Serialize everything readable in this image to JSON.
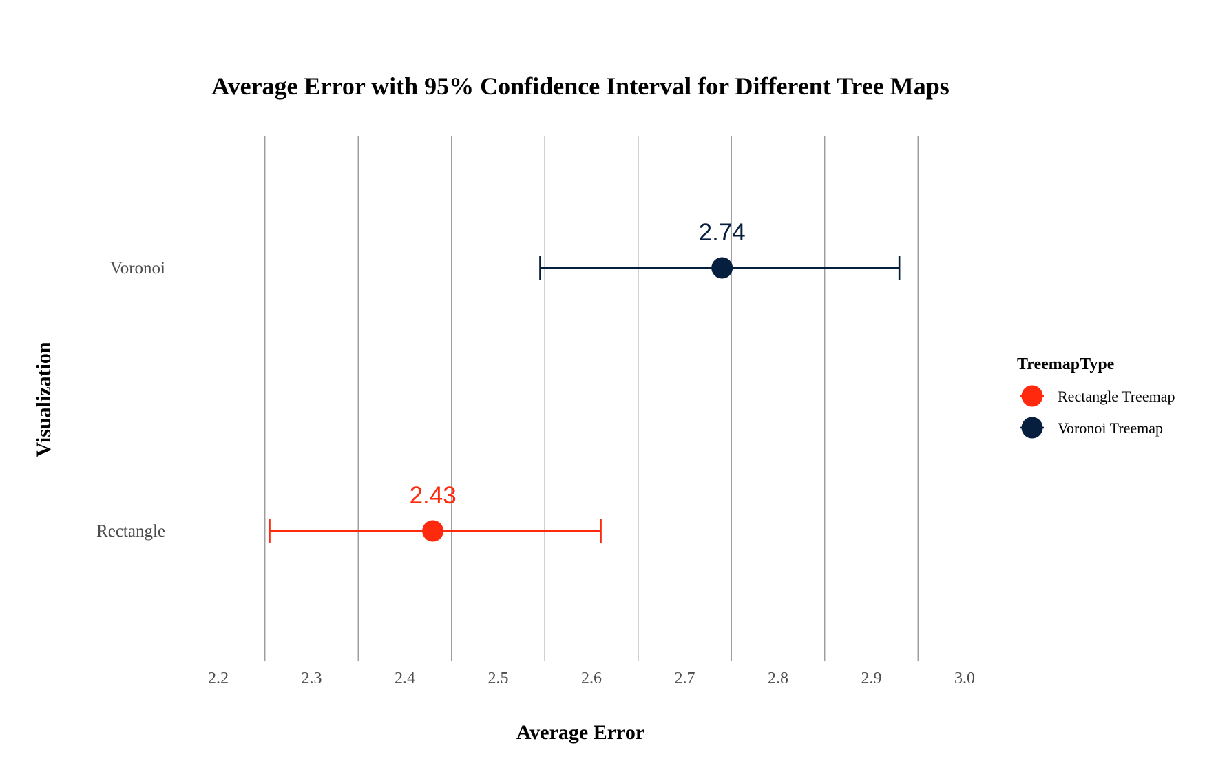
{
  "chart_data": {
    "type": "scatter",
    "title": "Average Error with 95% Confidence Interval for Different Tree Maps",
    "xlabel": "Average Error",
    "ylabel": "Visualization",
    "xlim": [
      2.2,
      3.0
    ],
    "xticks": [
      "2.2",
      "2.3",
      "2.4",
      "2.5",
      "2.6",
      "2.7",
      "2.8",
      "2.9",
      "3.0"
    ],
    "categories": [
      "Rectangle",
      "Voronoi"
    ],
    "legend": {
      "title": "TreemapType",
      "placement": "right",
      "entries": [
        "Rectangle Treemap",
        "Voronoi Treemap"
      ]
    },
    "grid": true,
    "series": [
      {
        "name": "Rectangle Treemap",
        "category": "Rectangle",
        "mean": 2.43,
        "ci_low": 2.255,
        "ci_high": 2.61,
        "label": "2.43",
        "color": "#ff2a0e"
      },
      {
        "name": "Voronoi Treemap",
        "category": "Voronoi",
        "mean": 2.74,
        "ci_low": 2.545,
        "ci_high": 2.93,
        "label": "2.74",
        "color": "#061f3e"
      }
    ]
  }
}
